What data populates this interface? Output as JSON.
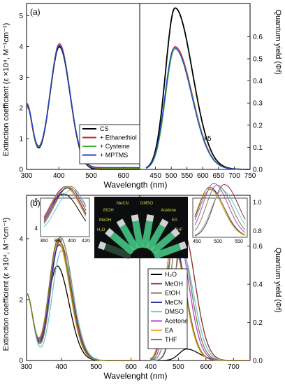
{
  "chart_data": [
    {
      "panel_label": "(a)",
      "type": "line",
      "xlabel": "Wavelength (nm)",
      "ylabel_left": "Extinction coefficient (ε ×10⁴, M⁻¹cm⁻¹)",
      "ylabel_right": "Quantum yield (Φf)",
      "xticks_left": [
        "300",
        "400",
        "500",
        "600"
      ],
      "xticks_right": [
        "450",
        "500",
        "550",
        "600",
        "650",
        "700",
        "750"
      ],
      "yticks_left": [
        "0",
        "1",
        "2",
        "3",
        "4",
        "5"
      ],
      "yticks_right": [
        "0.0",
        "0.1",
        "0.2",
        "0.3",
        "0.4",
        "0.5",
        "0.6"
      ],
      "ylim_left": [
        0,
        5.4
      ],
      "ylim_right": [
        0,
        0.75
      ],
      "annotation": "x5",
      "legend": [
        "CS",
        "+ Ethanethiol",
        "+ Cysteine",
        "+ MPTMS"
      ],
      "series": [
        {
          "name": "CS",
          "color": "#000000",
          "abs_peak": 3.98,
          "em_peak": 0.73,
          "em_peak_nm": 512
        },
        {
          "name": "+ Ethanethiol",
          "color": "#d62020",
          "abs_peak": 4.06,
          "em_peak": 0.555,
          "em_peak_nm": 512
        },
        {
          "name": "+ Cysteine",
          "color": "#3cb030",
          "abs_peak": 4.0,
          "em_peak": 0.545,
          "em_peak_nm": 512
        },
        {
          "name": "+ MPTMS",
          "color": "#1f3fd6",
          "abs_peak": 3.96,
          "em_peak": 0.55,
          "em_peak_nm": 510
        }
      ]
    },
    {
      "panel_label": "(b)",
      "type": "line",
      "xlabel": "Wavelenght (nm)",
      "ylabel_left": "Extinction coefficient (ε ×10⁴, M⁻¹cm⁻¹)",
      "ylabel_right": "Quantum yield (Φf)",
      "xticks_left": [
        "300",
        "400",
        "500",
        "600"
      ],
      "xticks_right": [
        "400",
        "500",
        "600",
        "700"
      ],
      "yticks_left": [
        "0",
        "2",
        "4"
      ],
      "yticks_right": [
        "0.0",
        "0.2",
        "0.4",
        "0.6"
      ],
      "ylim_left": [
        0,
        4.5
      ],
      "ylim_right": [
        0,
        0.78
      ],
      "inset_left": {
        "xticks": [
          "360",
          "380",
          "400",
          "420"
        ],
        "yticks": [
          "4",
          "6"
        ]
      },
      "inset_right": {
        "xticks": [
          "450",
          "500",
          "550"
        ],
        "yticks": [
          "0.8",
          "1.0"
        ]
      },
      "photo_labels": [
        "H₂O",
        "MeOH",
        "EtOH",
        "MeCN",
        "DMSO",
        "Acetone",
        "EA",
        "THF"
      ],
      "legend": [
        "H₂O",
        "MeOH",
        "EtOH",
        "MeCN",
        "DMSO",
        "Acetone",
        "EA",
        "THF"
      ],
      "series": [
        {
          "name": "H₂O",
          "color": "#000000",
          "abs_peak": 3.1,
          "abs_peak_nm": 388,
          "em_peak": 0.06,
          "em_peak_nm": 530
        },
        {
          "name": "MeOH",
          "color": "#8b2b1e",
          "abs_peak": 3.9,
          "abs_peak_nm": 395,
          "em_peak": 0.69,
          "em_peak_nm": 515
        },
        {
          "name": "EtOH",
          "color": "#7f7f55",
          "abs_peak": 4.05,
          "abs_peak_nm": 397,
          "em_peak": 0.68,
          "em_peak_nm": 498
        },
        {
          "name": "MeCN",
          "color": "#1e2a9a",
          "abs_peak": 3.8,
          "abs_peak_nm": 393,
          "em_peak": 0.64,
          "em_peak_nm": 480
        },
        {
          "name": "DMSO",
          "color": "#6ec3d8",
          "abs_peak": 3.6,
          "abs_peak_nm": 400,
          "em_peak": 0.58,
          "em_peak_nm": 510
        },
        {
          "name": "Acetone",
          "color": "#b545c8",
          "abs_peak": 3.95,
          "abs_peak_nm": 392,
          "em_peak": 0.71,
          "em_peak_nm": 490
        },
        {
          "name": "EA",
          "color": "#e9a11d",
          "abs_peak": 3.9,
          "abs_peak_nm": 390,
          "em_peak": 0.62,
          "em_peak_nm": 478
        },
        {
          "name": "THF",
          "color": "#7b7a2a",
          "abs_peak": 4.0,
          "abs_peak_nm": 391,
          "em_peak": 0.6,
          "em_peak_nm": 482
        }
      ]
    }
  ]
}
